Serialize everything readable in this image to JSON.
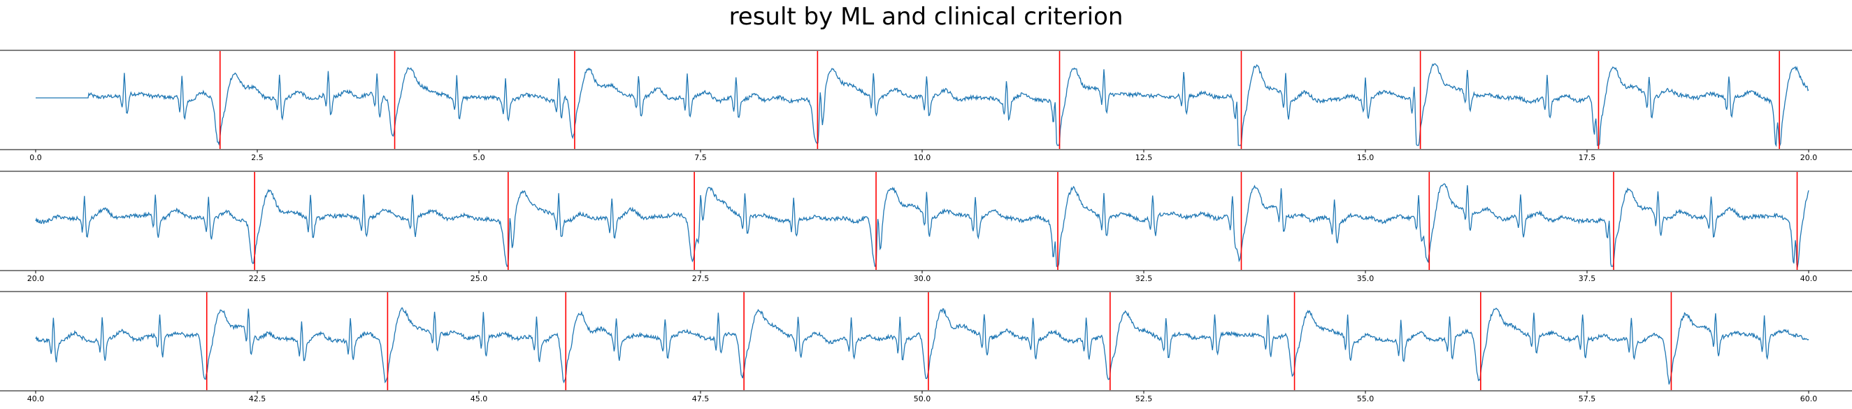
{
  "figure": {
    "title": "result by ML and clinical criterion"
  },
  "colors": {
    "signal": "#1f77b4",
    "marker": "#ff0000",
    "axis": "#000000"
  },
  "chart_data": [
    {
      "type": "line",
      "xlim": [
        0,
        20
      ],
      "xticks": [
        0,
        2.5,
        5,
        7.5,
        10,
        12.5,
        15,
        17.5,
        20
      ],
      "tick_labels": [
        "0.0",
        "2.5",
        "5.0",
        "7.5",
        "10.0",
        "12.5",
        "15.0",
        "17.5",
        "20.0"
      ],
      "flat_until": 0.6,
      "beat_times": [
        1.0,
        1.65,
        2.75,
        3.3,
        3.85,
        4.75,
        5.3,
        5.9,
        6.8,
        7.35,
        7.9,
        8.85,
        9.45,
        10.05,
        10.95,
        11.5,
        12.05,
        12.95,
        13.55,
        14.1,
        15.0,
        15.55,
        16.15,
        17.05,
        17.6,
        18.2,
        19.1,
        19.65
      ],
      "markers": [
        2.08,
        4.05,
        6.08,
        8.82,
        11.55,
        13.6,
        15.62,
        17.63,
        19.67
      ],
      "series": [
        {
          "values": []
        }
      ]
    },
    {
      "type": "line",
      "xlim": [
        20,
        40
      ],
      "xticks": [
        20,
        22.5,
        25,
        27.5,
        30,
        32.5,
        35,
        37.5,
        40
      ],
      "tick_labels": [
        "20.0",
        "22.5",
        "25.0",
        "27.5",
        "30.0",
        "32.5",
        "35.0",
        "37.5",
        "40.0"
      ],
      "flat_until": null,
      "beat_times": [
        20.55,
        21.35,
        21.95,
        23.1,
        23.7,
        24.25,
        25.35,
        25.9,
        26.5,
        27.5,
        28.0,
        28.55,
        29.5,
        30.05,
        30.6,
        31.5,
        32.05,
        32.6,
        33.5,
        34.05,
        34.65,
        35.6,
        36.15,
        36.75,
        37.75,
        38.3,
        38.9,
        39.85
      ],
      "markers": [
        22.47,
        25.33,
        27.43,
        29.48,
        31.53,
        33.6,
        35.72,
        37.8,
        39.87
      ],
      "series": [
        {
          "values": []
        }
      ]
    },
    {
      "type": "line",
      "xlim": [
        40,
        60
      ],
      "xticks": [
        40,
        42.5,
        45,
        47.5,
        50,
        52.5,
        55,
        57.5,
        60
      ],
      "tick_labels": [
        "40.0",
        "42.5",
        "45.0",
        "47.5",
        "50.0",
        "52.5",
        "55.0",
        "57.5",
        "60.0"
      ],
      "flat_until": null,
      "beat_times": [
        40.2,
        40.75,
        41.4,
        42.4,
        43.0,
        43.55,
        44.5,
        45.05,
        45.65,
        46.55,
        47.1,
        47.7,
        48.6,
        49.2,
        49.75,
        50.7,
        51.25,
        51.85,
        52.75,
        53.3,
        53.9,
        54.8,
        55.4,
        55.95,
        56.9,
        57.45,
        58.0,
        58.95,
        59.5
      ],
      "markers": [
        41.93,
        43.97,
        45.98,
        47.99,
        50.07,
        52.12,
        54.2,
        56.3,
        58.45
      ],
      "series": [
        {
          "values": []
        }
      ]
    }
  ]
}
